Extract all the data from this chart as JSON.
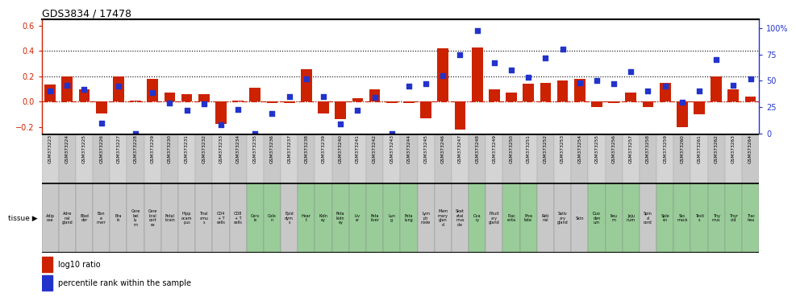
{
  "title": "GDS3834 / 17478",
  "gsm_labels": [
    "GSM373223",
    "GSM373224",
    "GSM373225",
    "GSM373226",
    "GSM373227",
    "GSM373228",
    "GSM373229",
    "GSM373230",
    "GSM373231",
    "GSM373232",
    "GSM373233",
    "GSM373234",
    "GSM373235",
    "GSM373236",
    "GSM373237",
    "GSM373238",
    "GSM373239",
    "GSM373240",
    "GSM373241",
    "GSM373242",
    "GSM373243",
    "GSM373244",
    "GSM373245",
    "GSM373246",
    "GSM373247",
    "GSM373248",
    "GSM373249",
    "GSM373250",
    "GSM373251",
    "GSM373252",
    "GSM373253",
    "GSM373254",
    "GSM373255",
    "GSM373256",
    "GSM373257",
    "GSM373258",
    "GSM373259",
    "GSM373260",
    "GSM373261",
    "GSM373262",
    "GSM373263",
    "GSM373264"
  ],
  "tissue_lines": [
    [
      "Adip",
      "ose"
    ],
    [
      "Adre",
      "nal",
      "gland"
    ],
    [
      "Blad",
      "der"
    ],
    [
      "Bon",
      "e",
      "marr"
    ],
    [
      "Bra",
      "in"
    ],
    [
      "Cere",
      "bel",
      "lu",
      "m"
    ],
    [
      "Cere",
      "bral",
      "cort",
      "ex"
    ],
    [
      "Fetal",
      "brain"
    ],
    [
      "Hipp",
      "ocam",
      "pus"
    ],
    [
      "Thal",
      "amu",
      "s"
    ],
    [
      "CD4",
      "+ T",
      "cells"
    ],
    [
      "CD8",
      "+ T",
      "cells"
    ],
    [
      "Cerv",
      "ix"
    ],
    [
      "Colo",
      "n"
    ],
    [
      "Epid",
      "dym",
      "s"
    ],
    [
      "Hear",
      "t"
    ],
    [
      "Kidn",
      "ey"
    ],
    [
      "Feta",
      "kidn",
      "ey"
    ],
    [
      "Liv",
      "er"
    ],
    [
      "Feta",
      "liver"
    ],
    [
      "Lun",
      "g"
    ],
    [
      "Feta",
      "lung"
    ],
    [
      "Lym",
      "ph",
      "node"
    ],
    [
      "Mam",
      "mary",
      "glan",
      "d"
    ],
    [
      "Sket",
      "etal",
      "mus",
      "cle"
    ],
    [
      "Ova",
      "ry"
    ],
    [
      "Pituit",
      "ary",
      "gland"
    ],
    [
      "Plac",
      "enta"
    ],
    [
      "Pros",
      "tate"
    ],
    [
      "Reti",
      "nal"
    ],
    [
      "Saliv",
      "ary",
      "gland"
    ],
    [
      "Skin"
    ],
    [
      "Duo",
      "den",
      "um"
    ],
    [
      "Ileu",
      "m"
    ],
    [
      "Jeju",
      "num"
    ],
    [
      "Spin",
      "al",
      "cord"
    ],
    [
      "Sple",
      "en"
    ],
    [
      "Sto",
      "mack"
    ],
    [
      "Testi",
      "s"
    ],
    [
      "Thy",
      "mus"
    ],
    [
      "Thyr",
      "oid"
    ],
    [
      "Trac",
      "hea"
    ]
  ],
  "log10_ratio": [
    0.135,
    0.2,
    0.1,
    -0.09,
    0.2,
    0.01,
    0.18,
    0.07,
    0.06,
    0.06,
    -0.175,
    0.01,
    0.11,
    -0.01,
    -0.01,
    0.26,
    -0.09,
    -0.14,
    0.03,
    0.1,
    -0.01,
    -0.01,
    -0.13,
    0.42,
    -0.22,
    0.43,
    0.1,
    0.07,
    0.14,
    0.15,
    0.17,
    0.18,
    -0.04,
    -0.01,
    0.07,
    -0.04,
    0.15,
    -0.2,
    -0.1,
    0.2,
    0.1,
    0.04
  ],
  "percentile": [
    40,
    46,
    42,
    10,
    45,
    0,
    39,
    29,
    22,
    28,
    8,
    23,
    0,
    19,
    35,
    52,
    35,
    9,
    22,
    34,
    0,
    45,
    47,
    55,
    75,
    98,
    67,
    60,
    53,
    72,
    80,
    48,
    50,
    47,
    59,
    40,
    45,
    30,
    40,
    70,
    46,
    52
  ],
  "tissue_colors": [
    "#c8c8c8",
    "#c8c8c8",
    "#c8c8c8",
    "#c8c8c8",
    "#c8c8c8",
    "#c8c8c8",
    "#c8c8c8",
    "#c8c8c8",
    "#c8c8c8",
    "#c8c8c8",
    "#c8c8c8",
    "#c8c8c8",
    "#99cc99",
    "#99cc99",
    "#c8c8c8",
    "#99cc99",
    "#99cc99",
    "#99cc99",
    "#99cc99",
    "#99cc99",
    "#99cc99",
    "#99cc99",
    "#c8c8c8",
    "#c8c8c8",
    "#c8c8c8",
    "#99cc99",
    "#c8c8c8",
    "#99cc99",
    "#99cc99",
    "#c8c8c8",
    "#c8c8c8",
    "#c8c8c8",
    "#99cc99",
    "#99cc99",
    "#99cc99",
    "#c8c8c8",
    "#99cc99",
    "#99cc99",
    "#99cc99",
    "#99cc99",
    "#99cc99",
    "#99cc99"
  ],
  "bar_color": "#cc2200",
  "dot_color": "#2233cc",
  "left_ylim": [
    -0.25,
    0.65
  ],
  "right_ylim": [
    0,
    108.33
  ],
  "left_yticks": [
    -0.2,
    0.0,
    0.2,
    0.4,
    0.6
  ],
  "right_yticks": [
    0,
    25,
    50,
    75,
    100
  ],
  "right_ytick_labels": [
    "0",
    "25",
    "50",
    "75",
    "100%"
  ],
  "hlines": [
    0.0,
    0.2,
    0.4
  ],
  "bg_color": "#ffffff"
}
